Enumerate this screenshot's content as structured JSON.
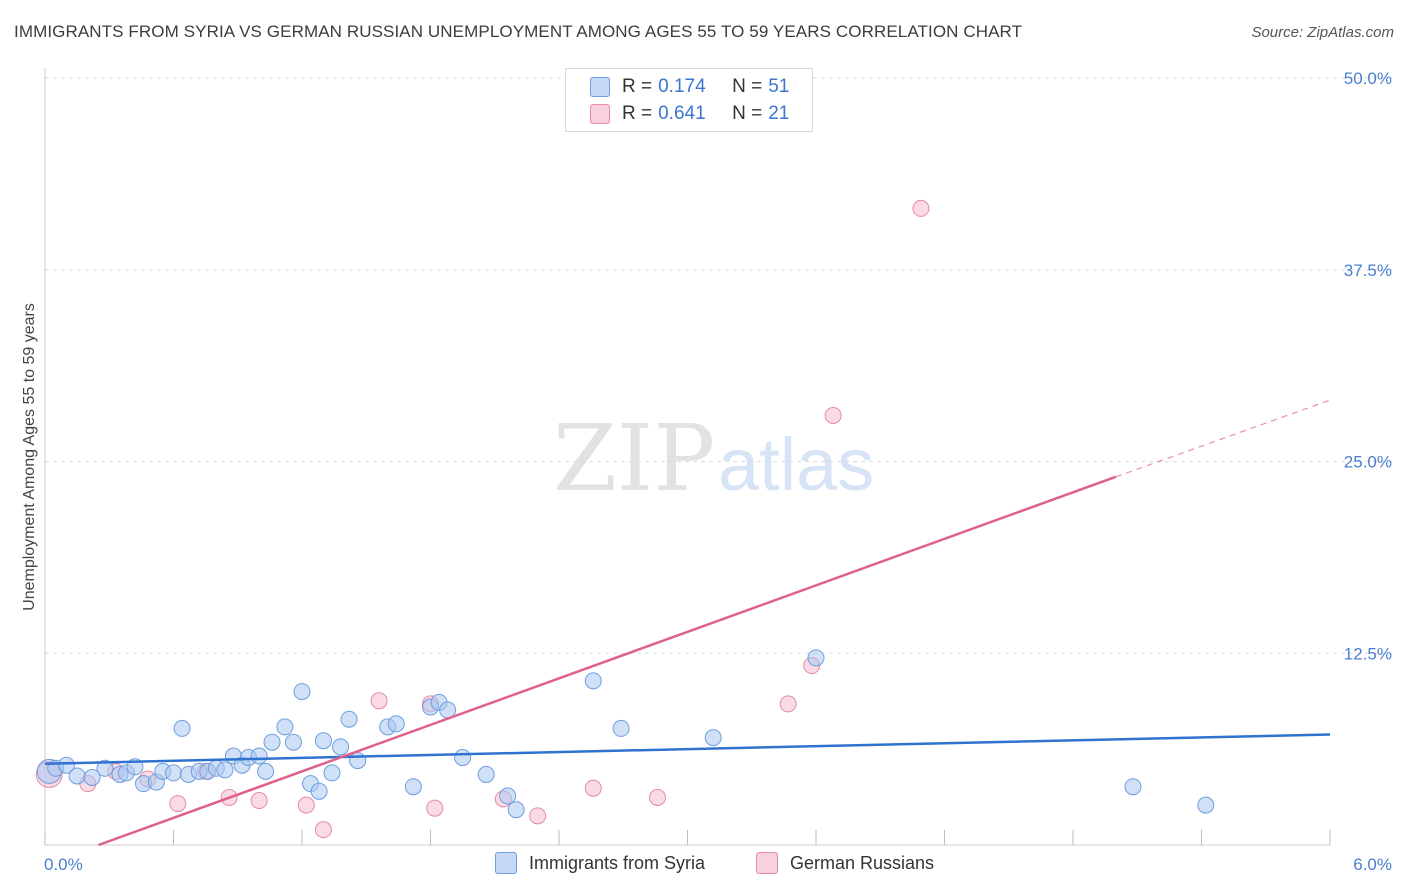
{
  "title": "IMMIGRANTS FROM SYRIA VS GERMAN RUSSIAN UNEMPLOYMENT AMONG AGES 55 TO 59 YEARS CORRELATION CHART",
  "source": "Source: ZipAtlas.com",
  "watermark": {
    "zip": "ZIP",
    "atlas": "atlas"
  },
  "colors": {
    "blue_fill": "#aac8f0",
    "blue_stroke": "#6f9ddf",
    "blue_line": "#2f72d0",
    "pink_fill": "#f6bdd0",
    "pink_stroke": "#e48aa9",
    "pink_line": "#e0608c",
    "axis_text": "#4a7fd0",
    "grid": "#dddddd"
  },
  "legend": {
    "rows": [
      {
        "r_label": "R =",
        "r_value": "0.174",
        "n_label": "N =",
        "n_value": "51"
      },
      {
        "r_label": "R =",
        "r_value": "0.641",
        "n_label": "N =",
        "n_value": "21"
      }
    ]
  },
  "bottom_legend": {
    "series1": "Immigrants from Syria",
    "series2": "German Russians"
  },
  "chart_data": {
    "type": "scatter",
    "title": "IMMIGRANTS FROM SYRIA VS GERMAN RUSSIAN UNEMPLOYMENT AMONG AGES 55 TO 59 YEARS CORRELATION CHART",
    "xlabel": "",
    "ylabel": "Unemployment Among Ages 55 to 59 years",
    "xlim": [
      0,
      6
    ],
    "ylim": [
      0,
      50
    ],
    "x_tick_labels": [
      "0.0%",
      "6.0%"
    ],
    "y_ticks": [
      12.5,
      25.0,
      37.5,
      50.0
    ],
    "y_tick_labels": [
      "12.5%",
      "25.0%",
      "37.5%",
      "50.0%"
    ],
    "grid": true,
    "series": [
      {
        "name": "Immigrants from Syria",
        "color": "#aac8f0",
        "r": 0.174,
        "n": 51,
        "trend": {
          "x0": 0,
          "y0": 5.3,
          "x1": 6.0,
          "y1": 7.2
        },
        "points": [
          [
            0.02,
            4.8
          ],
          [
            0.05,
            5.0
          ],
          [
            0.1,
            5.2
          ],
          [
            0.15,
            4.5
          ],
          [
            0.22,
            4.4
          ],
          [
            0.28,
            5.0
          ],
          [
            0.35,
            4.6
          ],
          [
            0.38,
            4.7
          ],
          [
            0.42,
            5.1
          ],
          [
            0.46,
            4.0
          ],
          [
            0.52,
            4.1
          ],
          [
            0.55,
            4.8
          ],
          [
            0.6,
            4.7
          ],
          [
            0.64,
            7.6
          ],
          [
            0.67,
            4.6
          ],
          [
            0.72,
            4.8
          ],
          [
            0.76,
            4.8
          ],
          [
            0.8,
            5.0
          ],
          [
            0.84,
            4.9
          ],
          [
            0.88,
            5.8
          ],
          [
            0.92,
            5.2
          ],
          [
            0.95,
            5.7
          ],
          [
            1.0,
            5.8
          ],
          [
            1.03,
            4.8
          ],
          [
            1.06,
            6.7
          ],
          [
            1.12,
            7.7
          ],
          [
            1.16,
            6.7
          ],
          [
            1.2,
            10.0
          ],
          [
            1.24,
            4.0
          ],
          [
            1.28,
            3.5
          ],
          [
            1.3,
            6.8
          ],
          [
            1.34,
            4.7
          ],
          [
            1.38,
            6.4
          ],
          [
            1.42,
            8.2
          ],
          [
            1.46,
            5.5
          ],
          [
            1.6,
            7.7
          ],
          [
            1.64,
            7.9
          ],
          [
            1.72,
            3.8
          ],
          [
            1.8,
            9.0
          ],
          [
            1.84,
            9.3
          ],
          [
            1.88,
            8.8
          ],
          [
            1.95,
            5.7
          ],
          [
            2.06,
            4.6
          ],
          [
            2.16,
            3.2
          ],
          [
            2.2,
            2.3
          ],
          [
            2.56,
            10.7
          ],
          [
            2.69,
            7.6
          ],
          [
            3.12,
            7.0
          ],
          [
            3.6,
            12.2
          ],
          [
            5.08,
            3.8
          ],
          [
            5.42,
            2.6
          ]
        ]
      },
      {
        "name": "German Russians",
        "color": "#f6bdd0",
        "r": 0.641,
        "n": 21,
        "trend": {
          "x0": 0.25,
          "y0": 0,
          "x1": 5.0,
          "y1": 24.0,
          "dashed_to_x": 6.0,
          "dashed_to_y": 29.0
        },
        "points": [
          [
            0.02,
            4.6
          ],
          [
            0.2,
            4.0
          ],
          [
            0.33,
            4.8
          ],
          [
            0.48,
            4.3
          ],
          [
            0.62,
            2.7
          ],
          [
            0.75,
            4.8
          ],
          [
            0.86,
            3.1
          ],
          [
            1.0,
            2.9
          ],
          [
            1.22,
            2.6
          ],
          [
            1.3,
            1.0
          ],
          [
            1.56,
            9.4
          ],
          [
            1.8,
            9.2
          ],
          [
            1.82,
            2.4
          ],
          [
            2.14,
            3.0
          ],
          [
            2.3,
            1.9
          ],
          [
            2.56,
            3.7
          ],
          [
            2.86,
            3.1
          ],
          [
            3.47,
            9.2
          ],
          [
            3.58,
            11.7
          ],
          [
            3.68,
            28.0
          ],
          [
            4.09,
            41.5
          ]
        ]
      }
    ]
  }
}
